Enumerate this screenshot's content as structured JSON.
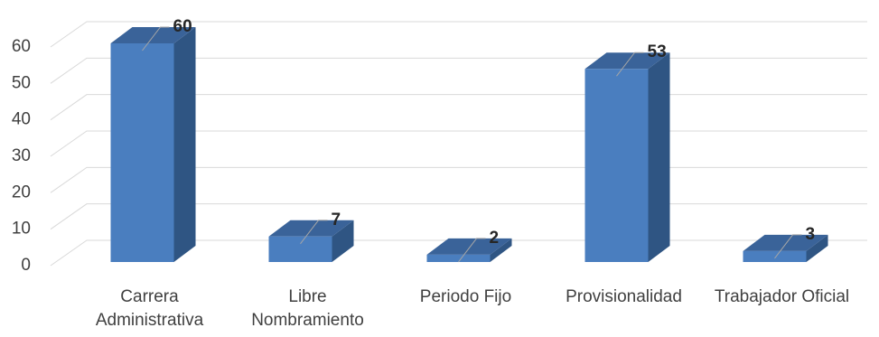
{
  "chart_data": {
    "type": "bar3d",
    "categories": [
      "Carrera Administrativa",
      "Libre Nombramiento",
      "Periodo Fijo",
      "Provisionalidad",
      "Trabajador Oficial"
    ],
    "values": [
      60,
      7,
      2,
      53,
      3
    ],
    "color": "#4a7ebf",
    "ylim": [
      0,
      60
    ],
    "yticks": [
      0,
      10,
      20,
      30,
      40,
      50,
      60
    ],
    "grid": true
  }
}
